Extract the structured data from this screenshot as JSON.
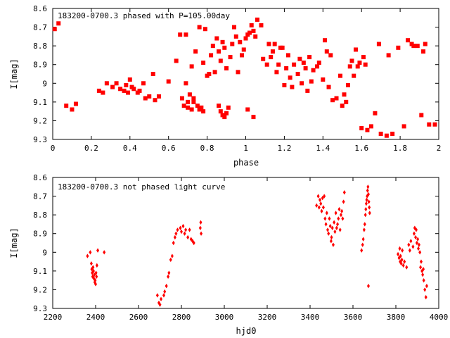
{
  "chart_data": [
    {
      "type": "scatter",
      "title": "183200-0700.3 phased with P=105.00day",
      "xlabel": "phase",
      "ylabel": "I[mag]",
      "xlim": [
        0,
        2
      ],
      "ylim": [
        9.3,
        8.6
      ],
      "x_ticks": [
        0,
        0.2,
        0.4,
        0.6,
        0.8,
        1,
        1.2,
        1.4,
        1.6,
        1.8,
        2
      ],
      "y_ticks": [
        8.6,
        8.7,
        8.8,
        8.9,
        9,
        9.1,
        9.2,
        9.3
      ],
      "marker_color": "#ff0000",
      "marker": "filled-square",
      "grid": false,
      "points": [
        [
          0.01,
          8.71
        ],
        [
          0.03,
          8.68
        ],
        [
          0.07,
          9.12
        ],
        [
          0.1,
          9.14
        ],
        [
          0.12,
          9.11
        ],
        [
          0.24,
          9.04
        ],
        [
          0.26,
          9.05
        ],
        [
          0.28,
          9.0
        ],
        [
          0.31,
          9.02
        ],
        [
          0.33,
          9.0
        ],
        [
          0.35,
          9.03
        ],
        [
          0.37,
          9.04
        ],
        [
          0.38,
          9.01
        ],
        [
          0.39,
          9.05
        ],
        [
          0.4,
          8.98
        ],
        [
          0.41,
          9.02
        ],
        [
          0.42,
          9.03
        ],
        [
          0.44,
          9.05
        ],
        [
          0.45,
          9.04
        ],
        [
          0.47,
          9.0
        ],
        [
          0.48,
          9.08
        ],
        [
          0.5,
          9.07
        ],
        [
          0.52,
          8.95
        ],
        [
          0.53,
          9.09
        ],
        [
          0.55,
          9.07
        ],
        [
          0.6,
          8.99
        ],
        [
          0.64,
          8.88
        ],
        [
          0.66,
          8.74
        ],
        [
          0.67,
          9.08
        ],
        [
          0.68,
          9.12
        ],
        [
          0.69,
          9.0
        ],
        [
          0.69,
          8.74
        ],
        [
          0.7,
          9.1
        ],
        [
          0.7,
          9.13
        ],
        [
          0.71,
          9.06
        ],
        [
          0.72,
          9.14
        ],
        [
          0.72,
          8.91
        ],
        [
          0.73,
          9.08
        ],
        [
          0.73,
          9.1
        ],
        [
          0.74,
          8.83
        ],
        [
          0.75,
          9.12
        ],
        [
          0.76,
          9.14
        ],
        [
          0.76,
          8.7
        ],
        [
          0.77,
          9.13
        ],
        [
          0.78,
          9.15
        ],
        [
          0.78,
          8.89
        ],
        [
          0.79,
          8.71
        ],
        [
          0.8,
          8.96
        ],
        [
          0.81,
          8.95
        ],
        [
          0.82,
          8.85
        ],
        [
          0.83,
          8.8
        ],
        [
          0.84,
          8.94
        ],
        [
          0.85,
          8.76
        ],
        [
          0.86,
          9.12
        ],
        [
          0.86,
          8.83
        ],
        [
          0.87,
          9.15
        ],
        [
          0.87,
          8.88
        ],
        [
          0.88,
          9.17
        ],
        [
          0.88,
          8.78
        ],
        [
          0.89,
          9.18
        ],
        [
          0.89,
          8.81
        ],
        [
          0.9,
          9.16
        ],
        [
          0.9,
          8.92
        ],
        [
          0.91,
          9.13
        ],
        [
          0.92,
          8.86
        ],
        [
          0.93,
          8.79
        ],
        [
          0.94,
          8.7
        ],
        [
          0.95,
          8.75
        ],
        [
          0.96,
          8.94
        ],
        [
          0.97,
          8.78
        ],
        [
          0.98,
          8.85
        ],
        [
          0.99,
          8.82
        ],
        [
          1.0,
          8.76
        ],
        [
          1.01,
          9.14
        ],
        [
          1.01,
          8.74
        ],
        [
          1.02,
          8.73
        ],
        [
          1.03,
          8.69
        ],
        [
          1.04,
          8.72
        ],
        [
          1.04,
          9.18
        ],
        [
          1.05,
          8.75
        ],
        [
          1.06,
          8.66
        ],
        [
          1.08,
          8.69
        ],
        [
          1.09,
          8.87
        ],
        [
          1.11,
          8.9
        ],
        [
          1.12,
          8.79
        ],
        [
          1.13,
          8.86
        ],
        [
          1.14,
          8.83
        ],
        [
          1.15,
          8.79
        ],
        [
          1.16,
          8.94
        ],
        [
          1.17,
          8.9
        ],
        [
          1.18,
          8.81
        ],
        [
          1.19,
          8.81
        ],
        [
          1.2,
          9.01
        ],
        [
          1.21,
          8.92
        ],
        [
          1.22,
          8.85
        ],
        [
          1.23,
          8.97
        ],
        [
          1.24,
          9.02
        ],
        [
          1.25,
          8.9
        ],
        [
          1.27,
          8.95
        ],
        [
          1.28,
          8.87
        ],
        [
          1.29,
          9.0
        ],
        [
          1.3,
          8.89
        ],
        [
          1.31,
          8.92
        ],
        [
          1.32,
          9.04
        ],
        [
          1.33,
          8.86
        ],
        [
          1.34,
          8.99
        ],
        [
          1.35,
          8.93
        ],
        [
          1.37,
          8.91
        ],
        [
          1.38,
          8.89
        ],
        [
          1.4,
          8.98
        ],
        [
          1.41,
          8.77
        ],
        [
          1.42,
          8.83
        ],
        [
          1.43,
          9.02
        ],
        [
          1.44,
          8.85
        ],
        [
          1.45,
          9.09
        ],
        [
          1.47,
          9.08
        ],
        [
          1.49,
          8.96
        ],
        [
          1.5,
          9.12
        ],
        [
          1.51,
          9.06
        ],
        [
          1.52,
          9.1
        ],
        [
          1.53,
          9.01
        ],
        [
          1.54,
          8.91
        ],
        [
          1.55,
          8.88
        ],
        [
          1.56,
          8.96
        ],
        [
          1.57,
          8.82
        ],
        [
          1.58,
          8.91
        ],
        [
          1.59,
          8.89
        ],
        [
          1.6,
          9.24
        ],
        [
          1.61,
          8.86
        ],
        [
          1.62,
          8.9
        ],
        [
          1.63,
          9.25
        ],
        [
          1.65,
          9.23
        ],
        [
          1.67,
          9.16
        ],
        [
          1.69,
          8.79
        ],
        [
          1.7,
          9.27
        ],
        [
          1.73,
          9.28
        ],
        [
          1.74,
          8.85
        ],
        [
          1.76,
          9.27
        ],
        [
          1.79,
          8.81
        ],
        [
          1.82,
          9.23
        ],
        [
          1.84,
          8.77
        ],
        [
          1.86,
          8.79
        ],
        [
          1.87,
          8.8
        ],
        [
          1.89,
          8.8
        ],
        [
          1.91,
          9.17
        ],
        [
          1.92,
          8.83
        ],
        [
          1.93,
          8.79
        ],
        [
          1.95,
          9.22
        ],
        [
          1.98,
          9.22
        ]
      ]
    },
    {
      "type": "scatter",
      "title": "183200-0700.3 not phased light curve",
      "xlabel": "hjd0",
      "ylabel": "I[mag]",
      "xlim": [
        2200,
        4000
      ],
      "ylim": [
        9.3,
        8.6
      ],
      "x_ticks": [
        2200,
        2400,
        2600,
        2800,
        3000,
        3200,
        3400,
        3600,
        3800,
        4000
      ],
      "y_ticks": [
        8.6,
        8.7,
        8.8,
        8.9,
        9,
        9.1,
        9.2,
        9.3
      ],
      "marker_color": "#ff0000",
      "marker": "filled-diamond",
      "grid": false,
      "points": [
        [
          2362,
          9.02
        ],
        [
          2375,
          9.0
        ],
        [
          2380,
          9.06
        ],
        [
          2382,
          9.09
        ],
        [
          2384,
          9.11
        ],
        [
          2386,
          9.13
        ],
        [
          2388,
          9.08
        ],
        [
          2390,
          9.1
        ],
        [
          2392,
          9.14
        ],
        [
          2394,
          9.12
        ],
        [
          2396,
          9.16
        ],
        [
          2398,
          9.15
        ],
        [
          2400,
          9.17
        ],
        [
          2402,
          9.11
        ],
        [
          2404,
          9.13
        ],
        [
          2406,
          9.07
        ],
        [
          2410,
          8.99
        ],
        [
          2440,
          9.0
        ],
        [
          2688,
          9.23
        ],
        [
          2695,
          9.27
        ],
        [
          2700,
          9.28
        ],
        [
          2705,
          9.25
        ],
        [
          2718,
          9.23
        ],
        [
          2722,
          9.21
        ],
        [
          2730,
          9.18
        ],
        [
          2738,
          9.13
        ],
        [
          2742,
          9.11
        ],
        [
          2750,
          9.04
        ],
        [
          2757,
          9.02
        ],
        [
          2763,
          8.95
        ],
        [
          2770,
          8.92
        ],
        [
          2775,
          8.9
        ],
        [
          2782,
          8.88
        ],
        [
          2795,
          8.87
        ],
        [
          2800,
          8.89
        ],
        [
          2808,
          8.86
        ],
        [
          2815,
          8.9
        ],
        [
          2820,
          8.88
        ],
        [
          2830,
          8.92
        ],
        [
          2838,
          8.88
        ],
        [
          2845,
          8.93
        ],
        [
          2852,
          8.94
        ],
        [
          2858,
          8.95
        ],
        [
          2888,
          8.87
        ],
        [
          2890,
          8.84
        ],
        [
          2892,
          8.9
        ],
        [
          3430,
          8.75
        ],
        [
          3438,
          8.7
        ],
        [
          3442,
          8.76
        ],
        [
          3446,
          8.72
        ],
        [
          3450,
          8.74
        ],
        [
          3454,
          8.78
        ],
        [
          3458,
          8.71
        ],
        [
          3462,
          8.76
        ],
        [
          3466,
          8.7
        ],
        [
          3470,
          8.82
        ],
        [
          3474,
          8.85
        ],
        [
          3478,
          8.79
        ],
        [
          3482,
          8.88
        ],
        [
          3486,
          8.9
        ],
        [
          3490,
          8.82
        ],
        [
          3494,
          8.86
        ],
        [
          3498,
          8.94
        ],
        [
          3500,
          8.92
        ],
        [
          3504,
          8.87
        ],
        [
          3508,
          8.96
        ],
        [
          3512,
          8.84
        ],
        [
          3516,
          8.89
        ],
        [
          3520,
          8.79
        ],
        [
          3524,
          8.87
        ],
        [
          3528,
          8.85
        ],
        [
          3532,
          8.82
        ],
        [
          3536,
          8.77
        ],
        [
          3540,
          8.88
        ],
        [
          3544,
          8.8
        ],
        [
          3548,
          8.78
        ],
        [
          3552,
          8.82
        ],
        [
          3556,
          8.73
        ],
        [
          3560,
          8.68
        ],
        [
          3640,
          8.99
        ],
        [
          3645,
          8.96
        ],
        [
          3648,
          8.93
        ],
        [
          3652,
          8.88
        ],
        [
          3655,
          8.85
        ],
        [
          3658,
          8.8
        ],
        [
          3660,
          8.77
        ],
        [
          3662,
          8.74
        ],
        [
          3664,
          8.72
        ],
        [
          3666,
          8.7
        ],
        [
          3668,
          8.67
        ],
        [
          3670,
          8.65
        ],
        [
          3672,
          8.69
        ],
        [
          3674,
          8.73
        ],
        [
          3676,
          8.76
        ],
        [
          3678,
          8.79
        ],
        [
          3672,
          9.18
        ],
        [
          3810,
          9.01
        ],
        [
          3815,
          9.03
        ],
        [
          3818,
          8.98
        ],
        [
          3820,
          9.05
        ],
        [
          3822,
          9.02
        ],
        [
          3825,
          9.06
        ],
        [
          3828,
          9.04
        ],
        [
          3830,
          8.99
        ],
        [
          3835,
          9.07
        ],
        [
          3840,
          9.05
        ],
        [
          3850,
          9.08
        ],
        [
          3860,
          8.96
        ],
        [
          3865,
          8.99
        ],
        [
          3870,
          8.94
        ],
        [
          3880,
          8.97
        ],
        [
          3885,
          8.9
        ],
        [
          3888,
          8.87
        ],
        [
          3892,
          8.92
        ],
        [
          3895,
          8.88
        ],
        [
          3898,
          8.95
        ],
        [
          3902,
          8.93
        ],
        [
          3905,
          8.98
        ],
        [
          3908,
          8.96
        ],
        [
          3912,
          9.0
        ],
        [
          3915,
          9.08
        ],
        [
          3918,
          9.05
        ],
        [
          3922,
          9.1
        ],
        [
          3925,
          9.12
        ],
        [
          3928,
          9.09
        ],
        [
          3930,
          9.15
        ],
        [
          3935,
          9.2
        ],
        [
          3940,
          9.24
        ],
        [
          3944,
          9.18
        ]
      ]
    }
  ]
}
